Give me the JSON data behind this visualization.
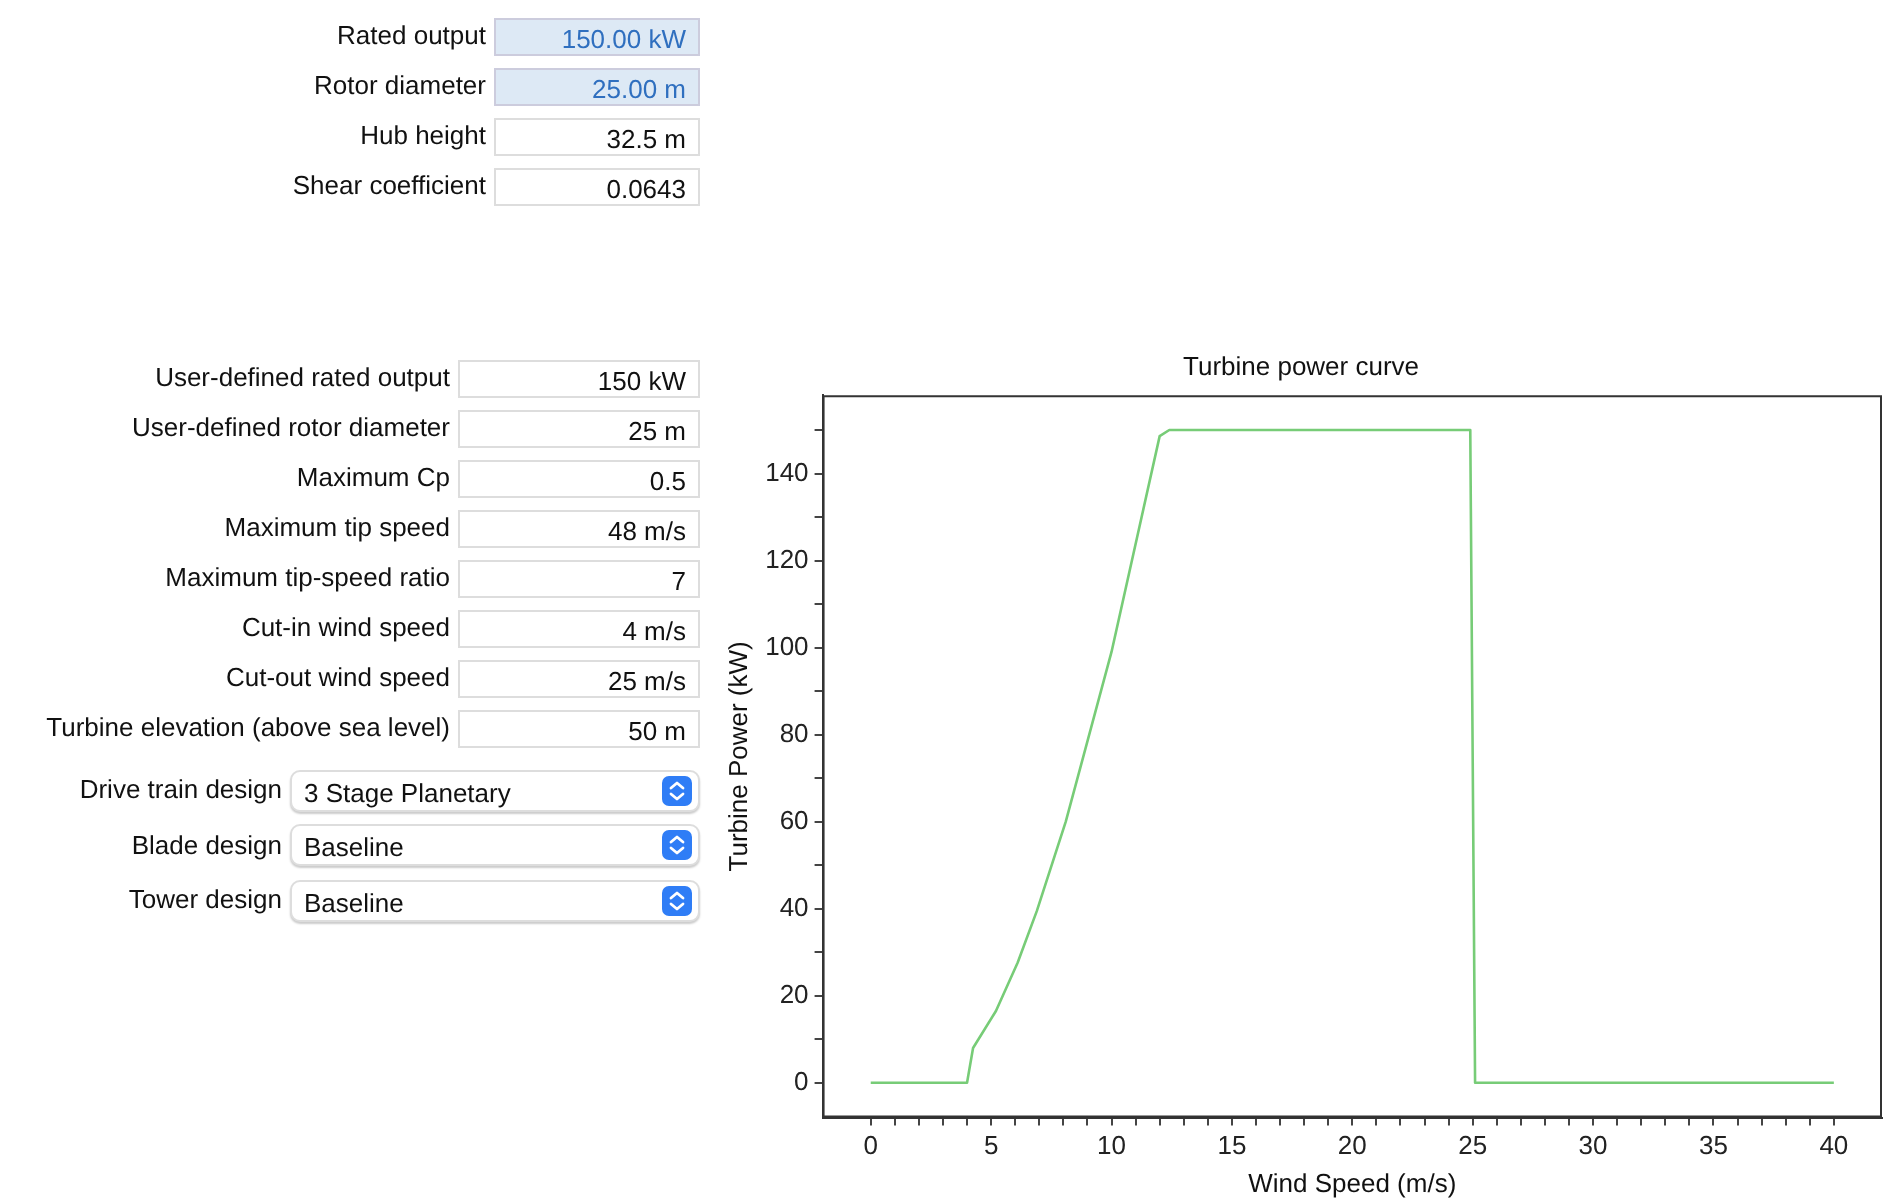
{
  "chart_data": [
    {
      "type": "other",
      "annotations": [
        "Rated output",
        "150.00 kW",
        "Rotor diameter",
        "25.00 m",
        "Hub height",
        "32.5 m",
        "Shear coefficient",
        "0.0643",
        "User-defined rated output",
        "150 kW",
        "User-defined rotor diameter",
        "25 m",
        "Maximum Cp",
        "0.5",
        "Maximum tip speed",
        "48 m/s",
        "Maximum tip-speed ratio",
        "7",
        "Cut-in wind speed",
        "4 m/s",
        "Cut-out wind speed",
        "25 m/s",
        "Turbine elevation (above sea level)",
        "50 m",
        "Drive train design",
        "3 Stage Planetary",
        "Blade design",
        "Baseline",
        "Tower design",
        "Baseline"
      ]
    },
    {
      "type": "line",
      "title": "Turbine power curve",
      "xlabel": "Wind Speed (m/s)",
      "ylabel": "Turbine Power (kW)",
      "x": [
        0,
        4,
        4.25,
        5.2,
        6.1,
        6.9,
        8.1,
        10,
        12,
        12.4,
        24.9,
        25.1,
        40
      ],
      "values": [
        0,
        0,
        8,
        16.5,
        27.6,
        39.5,
        60,
        99,
        148.6,
        150,
        150,
        0,
        0
      ],
      "color": "#77cc77",
      "marker": "none",
      "legend": false,
      "grid": false,
      "xlim": [
        -2,
        42
      ],
      "xticks": [
        0,
        {
          "value": 1,
          "label": null
        },
        {
          "value": 2,
          "label": null
        },
        {
          "value": 3,
          "label": null
        },
        {
          "value": 4,
          "label": null
        },
        5,
        {
          "value": 6,
          "label": null
        },
        {
          "value": 7,
          "label": null
        },
        {
          "value": 8,
          "label": null
        },
        {
          "value": 9,
          "label": null
        },
        10,
        {
          "value": 11,
          "label": null
        },
        {
          "value": 12,
          "label": null
        },
        {
          "value": 13,
          "label": null
        },
        {
          "value": 14,
          "label": null
        },
        15,
        {
          "value": 16,
          "label": null
        },
        {
          "value": 17,
          "label": null
        },
        {
          "value": 18,
          "label": null
        },
        {
          "value": 19,
          "label": null
        },
        20,
        {
          "value": 21,
          "label": null
        },
        {
          "value": 22,
          "label": null
        },
        {
          "value": 23,
          "label": null
        },
        {
          "value": 24,
          "label": null
        },
        25,
        {
          "value": 26,
          "label": null
        },
        {
          "value": 27,
          "label": null
        },
        {
          "value": 28,
          "label": null
        },
        {
          "value": 29,
          "label": null
        },
        30,
        {
          "value": 31,
          "label": null
        },
        {
          "value": 32,
          "label": null
        },
        {
          "value": 33,
          "label": null
        },
        {
          "value": 34,
          "label": null
        },
        35,
        {
          "value": 36,
          "label": null
        },
        {
          "value": 37,
          "label": null
        },
        {
          "value": 38,
          "label": null
        },
        {
          "value": 39,
          "label": null
        },
        40
      ],
      "ylim": [
        -8,
        158
      ],
      "yticks": [
        0,
        {
          "value": 10,
          "label": null
        },
        20,
        {
          "value": 30,
          "label": null
        },
        40,
        {
          "value": 50,
          "label": null
        },
        60,
        {
          "value": 70,
          "label": null
        },
        80,
        {
          "value": 90,
          "label": null
        },
        100,
        {
          "value": 110,
          "label": null
        },
        120,
        {
          "value": 130,
          "label": null
        },
        140,
        {
          "value": 150,
          "label": null
        }
      ]
    }
  ]
}
